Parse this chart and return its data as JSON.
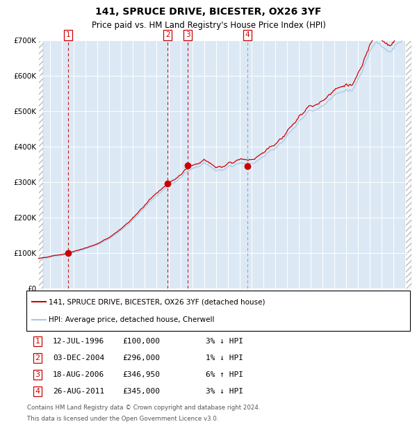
{
  "title_line1": "141, SPRUCE DRIVE, BICESTER, OX26 3YF",
  "title_line2": "Price paid vs. HM Land Registry's House Price Index (HPI)",
  "ylim": [
    0,
    700000
  ],
  "yticks": [
    0,
    100000,
    200000,
    300000,
    400000,
    500000,
    600000,
    700000
  ],
  "ytick_labels": [
    "£0",
    "£100K",
    "£200K",
    "£300K",
    "£400K",
    "£500K",
    "£600K",
    "£700K"
  ],
  "xmin": 1994.0,
  "xmax": 2025.5,
  "bg_color": "#dce9f5",
  "grid_color": "#ffffff",
  "hpi_color": "#a8c8e8",
  "price_color": "#cc0000",
  "sales": [
    {
      "label": "1",
      "year": 1996.53,
      "price": 100000
    },
    {
      "label": "2",
      "year": 2004.92,
      "price": 296000
    },
    {
      "label": "3",
      "year": 2006.63,
      "price": 346950
    },
    {
      "label": "4",
      "year": 2011.65,
      "price": 345000
    }
  ],
  "vline_red": [
    1996.53,
    2004.92,
    2006.63
  ],
  "vline_gray": [
    2011.65
  ],
  "legend_line1": "141, SPRUCE DRIVE, BICESTER, OX26 3YF (detached house)",
  "legend_line2": "HPI: Average price, detached house, Cherwell",
  "footer_line1": "Contains HM Land Registry data © Crown copyright and database right 2024.",
  "footer_line2": "This data is licensed under the Open Government Licence v3.0.",
  "table_rows": [
    [
      "1",
      "12-JUL-1996",
      "£100,000",
      "3% ↓ HPI"
    ],
    [
      "2",
      "03-DEC-2004",
      "£296,000",
      "1% ↓ HPI"
    ],
    [
      "3",
      "18-AUG-2006",
      "£346,950",
      "6% ↑ HPI"
    ],
    [
      "4",
      "26-AUG-2011",
      "£345,000",
      "3% ↓ HPI"
    ]
  ]
}
